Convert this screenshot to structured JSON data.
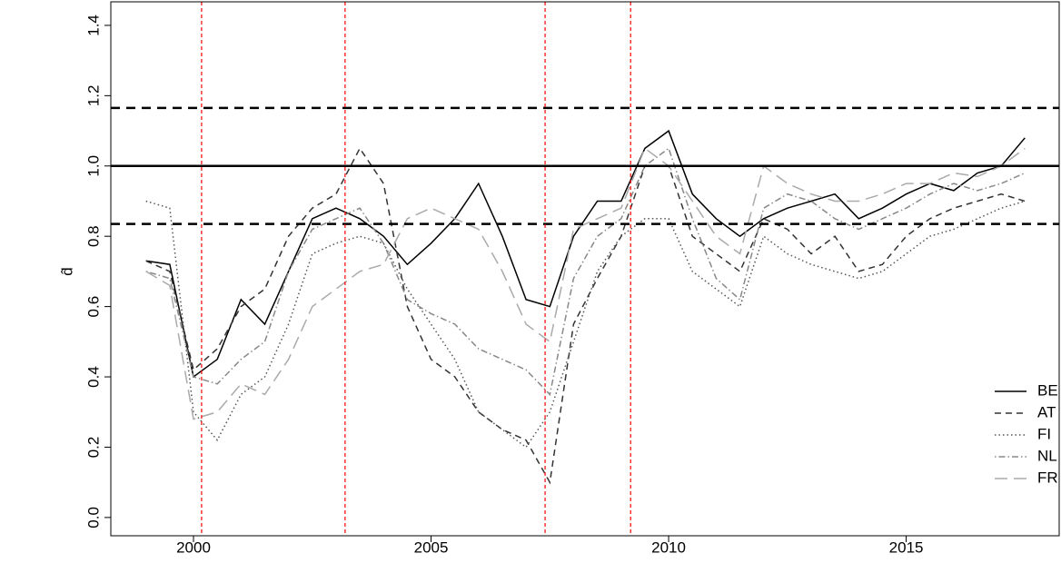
{
  "chart_data": {
    "type": "line",
    "y_label": "d̂",
    "x": [
      1999,
      1999.5,
      2000,
      2000.5,
      2001,
      2001.5,
      2002,
      2002.5,
      2003,
      2003.5,
      2004,
      2004.5,
      2005,
      2005.5,
      2006,
      2006.5,
      2007,
      2007.5,
      2008,
      2008.5,
      2009,
      2009.5,
      2010,
      2010.5,
      2011,
      2011.5,
      2012,
      2012.5,
      2013,
      2013.5,
      2014,
      2014.5,
      2015,
      2015.5,
      2016,
      2016.5,
      2017,
      2017.5
    ],
    "series": [
      {
        "name": "BE",
        "color": "#000000",
        "dash": "solid",
        "values": [
          0.73,
          0.72,
          0.4,
          0.45,
          0.62,
          0.55,
          0.7,
          0.85,
          0.88,
          0.85,
          0.8,
          0.72,
          0.78,
          0.85,
          0.95,
          0.8,
          0.62,
          0.6,
          0.8,
          0.9,
          0.9,
          1.05,
          1.1,
          0.92,
          0.85,
          0.8,
          0.85,
          0.88,
          0.9,
          0.92,
          0.85,
          0.88,
          0.92,
          0.95,
          0.93,
          0.98,
          1.0,
          1.08
        ]
      },
      {
        "name": "AT",
        "color": "#333333",
        "dash": "dashed",
        "values": [
          0.73,
          0.7,
          0.42,
          0.48,
          0.6,
          0.65,
          0.8,
          0.88,
          0.92,
          1.05,
          0.95,
          0.6,
          0.45,
          0.4,
          0.3,
          0.25,
          0.22,
          0.1,
          0.55,
          0.68,
          0.8,
          1.0,
          1.0,
          0.8,
          0.75,
          0.7,
          0.85,
          0.82,
          0.75,
          0.8,
          0.7,
          0.72,
          0.8,
          0.85,
          0.88,
          0.9,
          0.92,
          0.9
        ]
      },
      {
        "name": "FI",
        "color": "#555555",
        "dash": "dotted",
        "values": [
          0.9,
          0.88,
          0.3,
          0.22,
          0.35,
          0.4,
          0.55,
          0.75,
          0.78,
          0.8,
          0.78,
          0.65,
          0.55,
          0.45,
          0.3,
          0.25,
          0.2,
          0.3,
          0.5,
          0.7,
          0.8,
          0.85,
          0.85,
          0.7,
          0.65,
          0.6,
          0.8,
          0.75,
          0.72,
          0.7,
          0.68,
          0.7,
          0.75,
          0.8,
          0.82,
          0.85,
          0.88,
          0.9
        ]
      },
      {
        "name": "NL",
        "color": "#888888",
        "dash": "dotdash",
        "values": [
          0.7,
          0.68,
          0.4,
          0.38,
          0.45,
          0.5,
          0.7,
          0.82,
          0.85,
          0.88,
          0.78,
          0.62,
          0.58,
          0.55,
          0.48,
          0.45,
          0.42,
          0.35,
          0.68,
          0.8,
          0.85,
          1.0,
          1.05,
          0.85,
          0.68,
          0.62,
          0.88,
          0.92,
          0.9,
          0.85,
          0.82,
          0.85,
          0.88,
          0.92,
          0.95,
          0.93,
          0.95,
          0.98
        ]
      },
      {
        "name": "FR",
        "color": "#aaaaaa",
        "dash": "longdash",
        "values": [
          0.7,
          0.66,
          0.28,
          0.3,
          0.38,
          0.35,
          0.45,
          0.6,
          0.65,
          0.7,
          0.72,
          0.85,
          0.88,
          0.85,
          0.82,
          0.7,
          0.55,
          0.5,
          0.82,
          0.85,
          0.88,
          1.05,
          1.0,
          0.9,
          0.8,
          0.75,
          1.0,
          0.95,
          0.92,
          0.9,
          0.9,
          0.92,
          0.95,
          0.95,
          0.98,
          0.97,
          1.0,
          1.05
        ]
      }
    ],
    "hlines": [
      {
        "y": 1,
        "dash": "solid"
      },
      {
        "y": 0.835,
        "dash": "dashed"
      },
      {
        "y": 1.165,
        "dash": "dashed"
      }
    ],
    "vlines": {
      "color": "#ff0000",
      "x": [
        2000.17,
        2003.19,
        2007.4,
        2009.2
      ]
    },
    "xlim": [
      1998.26,
      2018.22
    ],
    "xticks": [
      2000,
      2005,
      2010,
      2015
    ],
    "ylim": [
      -0.052,
      1.467
    ],
    "yticks": [
      {
        "value": 0,
        "label": "0.0"
      },
      0.2,
      0.4,
      0.6,
      0.8,
      {
        "value": 1,
        "label": "1.0"
      },
      1.2,
      1.4
    ],
    "legend": "bottom-right"
  }
}
